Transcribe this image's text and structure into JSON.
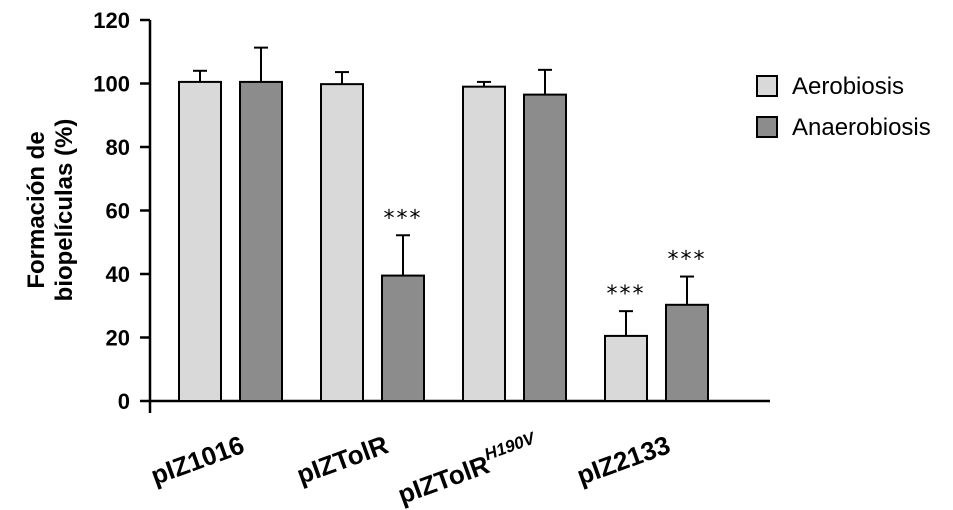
{
  "chart_data": {
    "type": "bar",
    "ylabel_lines": [
      "Formación de",
      "biopelículas (%)"
    ],
    "ylim": [
      0,
      120
    ],
    "yticks": [
      "0",
      "20",
      "40",
      "60",
      "80",
      "100",
      "120"
    ],
    "categories": [
      {
        "base": "pIZ1016",
        "sup": ""
      },
      {
        "base": "pIZTolR",
        "sup": ""
      },
      {
        "base": "pIZTolR",
        "sup": "H190V"
      },
      {
        "base": "pIZ2133",
        "sup": ""
      }
    ],
    "series": [
      {
        "name": "Aerobiosis",
        "color": "#d9d9d9",
        "values": [
          100.5,
          99.8,
          99,
          20.5
        ],
        "errors": [
          3.5,
          3.8,
          1.5,
          7.8
        ],
        "annotations": [
          "",
          "",
          "",
          "***"
        ]
      },
      {
        "name": "Anaerobiosis",
        "color": "#8c8c8c",
        "values": [
          100.5,
          39.5,
          96.5,
          30.3
        ],
        "errors": [
          10.8,
          12.7,
          7.8,
          8.9
        ],
        "annotations": [
          "",
          "***",
          "",
          "***"
        ]
      }
    ],
    "legend_position": "right",
    "grid": false
  }
}
